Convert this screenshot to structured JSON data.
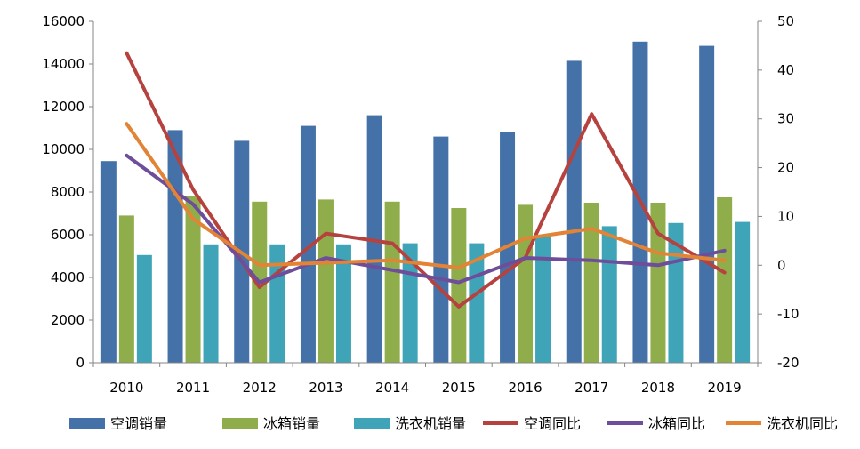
{
  "chart_data": {
    "type": "bar",
    "categories": [
      "2010",
      "2011",
      "2012",
      "2013",
      "2014",
      "2015",
      "2016",
      "2017",
      "2018",
      "2019"
    ],
    "series": [
      {
        "name": "空调销量",
        "kind": "bar",
        "axis": "left",
        "color": "#4472A8",
        "values": [
          9450,
          10900,
          10400,
          11100,
          11600,
          10600,
          10800,
          14150,
          15050,
          14850
        ]
      },
      {
        "name": "冰箱销量",
        "kind": "bar",
        "axis": "left",
        "color": "#8FAE4B",
        "values": [
          6900,
          7800,
          7550,
          7650,
          7550,
          7250,
          7400,
          7500,
          7500,
          7750
        ]
      },
      {
        "name": "洗衣机销量",
        "kind": "bar",
        "axis": "left",
        "color": "#3FA4B8",
        "values": [
          5050,
          5550,
          5550,
          5550,
          5600,
          5600,
          5950,
          6400,
          6550,
          6600
        ]
      },
      {
        "name": "空调同比",
        "kind": "line",
        "axis": "right",
        "color": "#B6423F",
        "values": [
          43.5,
          15.5,
          -4.5,
          6.5,
          4.5,
          -8.5,
          1.5,
          31.0,
          6.5,
          -1.5
        ]
      },
      {
        "name": "冰箱同比",
        "kind": "line",
        "axis": "right",
        "color": "#6E4E9A",
        "values": [
          22.5,
          12.5,
          -3.5,
          1.5,
          -1.0,
          -3.5,
          1.5,
          1.0,
          0.0,
          3.0
        ]
      },
      {
        "name": "洗衣机同比",
        "kind": "line",
        "axis": "right",
        "color": "#E38335",
        "values": [
          29.0,
          9.5,
          0.0,
          0.5,
          1.0,
          -0.5,
          5.5,
          7.5,
          2.5,
          1.0
        ]
      }
    ],
    "ylim": [
      0,
      16000
    ],
    "yticks": [
      0,
      2000,
      4000,
      6000,
      8000,
      10000,
      12000,
      14000,
      16000
    ],
    "y2lim": [
      -20,
      50
    ],
    "y2ticks": [
      -20,
      -10,
      0,
      10,
      20,
      30,
      40,
      50
    ],
    "grid": false,
    "legend_position": "bottom"
  }
}
